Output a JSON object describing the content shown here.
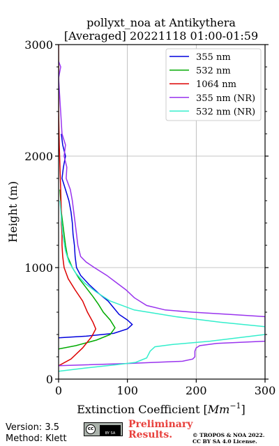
{
  "title_line1": "pollyxt_noa at Antikythera",
  "title_line2": "[Averaged] 20221118 01:00-01:59",
  "footer": {
    "version": "Version: 3.5",
    "method": "Method: Klett",
    "cc_badge_text": "BY SA",
    "prelim_line1": "Preliminary",
    "prelim_line2": "Results.",
    "copyright_line1": "© TROPOS & NOA 2022.",
    "copyright_line2": "CC BY SA 4.0 License.",
    "prelim_color": "#e8403c"
  },
  "chart_data": {
    "type": "line",
    "title": "pollyxt_noa at Antikythera [Averaged] 20221118 01:00-01:59",
    "xlabel": "Extinction Coefficient [Mm−1]",
    "xlabel_base": "Extinction Coefficient [",
    "xlabel_unit": "Mm",
    "xlabel_exp": "−1",
    "xlabel_end": "]",
    "ylabel": "Height (m)",
    "xlim": [
      0,
      300
    ],
    "ylim": [
      0,
      3000
    ],
    "xticks": [
      0,
      100,
      200,
      300
    ],
    "yticks": [
      0,
      1000,
      2000,
      3000
    ],
    "grid": true,
    "legend_position": "top-right",
    "series": [
      {
        "name": "355 nm",
        "color": "#0000dd",
        "points": [
          [
            0,
            370
          ],
          [
            40,
            385
          ],
          [
            80,
            410
          ],
          [
            100,
            450
          ],
          [
            107,
            490
          ],
          [
            100,
            530
          ],
          [
            88,
            580
          ],
          [
            80,
            640
          ],
          [
            72,
            700
          ],
          [
            58,
            770
          ],
          [
            44,
            850
          ],
          [
            32,
            930
          ],
          [
            26,
            1000
          ],
          [
            24,
            1100
          ],
          [
            23,
            1200
          ],
          [
            21,
            1300
          ],
          [
            20,
            1400
          ],
          [
            18,
            1500
          ],
          [
            15,
            1600
          ],
          [
            10,
            1700
          ],
          [
            5,
            1800
          ],
          [
            7,
            1900
          ],
          [
            10,
            2000
          ],
          [
            6,
            2100
          ],
          [
            4,
            2200
          ]
        ]
      },
      {
        "name": "532 nm",
        "color": "#00aa00",
        "points": [
          [
            0,
            270
          ],
          [
            25,
            300
          ],
          [
            55,
            350
          ],
          [
            75,
            400
          ],
          [
            82,
            460
          ],
          [
            75,
            530
          ],
          [
            65,
            600
          ],
          [
            58,
            670
          ],
          [
            50,
            740
          ],
          [
            40,
            820
          ],
          [
            30,
            900
          ],
          [
            20,
            1000
          ],
          [
            13,
            1100
          ],
          [
            10,
            1200
          ],
          [
            8,
            1300
          ],
          [
            6,
            1400
          ],
          [
            4,
            1500
          ],
          [
            3,
            1600
          ],
          [
            2,
            1700
          ]
        ]
      },
      {
        "name": "1064 nm",
        "color": "#dd0000",
        "points": [
          [
            0,
            120
          ],
          [
            18,
            180
          ],
          [
            35,
            280
          ],
          [
            48,
            380
          ],
          [
            54,
            450
          ],
          [
            50,
            510
          ],
          [
            42,
            600
          ],
          [
            35,
            700
          ],
          [
            24,
            800
          ],
          [
            14,
            900
          ],
          [
            8,
            1000
          ],
          [
            6,
            1100
          ],
          [
            5,
            1200
          ],
          [
            5,
            1300
          ],
          [
            4,
            1400
          ],
          [
            4,
            1500
          ],
          [
            3,
            1700
          ],
          [
            2,
            1900
          ],
          [
            1,
            2100
          ],
          [
            0,
            2400
          ],
          [
            0,
            3000
          ]
        ]
      },
      {
        "name": "355 nm (NR)",
        "color": "#9933ee",
        "points": [
          [
            0,
            120
          ],
          [
            100,
            140
          ],
          [
            180,
            160
          ],
          [
            195,
            180
          ],
          [
            198,
            200
          ],
          [
            198,
            250
          ],
          [
            200,
            280
          ],
          [
            205,
            300
          ],
          [
            230,
            320
          ],
          [
            300,
            340
          ],
          [
            300,
            560
          ],
          [
            250,
            580
          ],
          [
            195,
            600
          ],
          [
            155,
            620
          ],
          [
            128,
            660
          ],
          [
            110,
            730
          ],
          [
            98,
            800
          ],
          [
            85,
            860
          ],
          [
            70,
            930
          ],
          [
            52,
            1000
          ],
          [
            40,
            1050
          ],
          [
            32,
            1100
          ],
          [
            28,
            1200
          ],
          [
            26,
            1300
          ],
          [
            24,
            1400
          ],
          [
            22,
            1500
          ],
          [
            20,
            1600
          ],
          [
            17,
            1700
          ],
          [
            11,
            1800
          ],
          [
            12,
            1900
          ],
          [
            8,
            2000
          ],
          [
            10,
            2100
          ],
          [
            5,
            2200
          ],
          [
            0,
            2700
          ],
          [
            3,
            2800
          ],
          [
            0,
            2850
          ]
        ]
      },
      {
        "name": "532 nm (NR)",
        "color": "#33eecc",
        "points": [
          [
            0,
            70
          ],
          [
            40,
            100
          ],
          [
            85,
            130
          ],
          [
            112,
            150
          ],
          [
            128,
            190
          ],
          [
            133,
            250
          ],
          [
            140,
            290
          ],
          [
            165,
            310
          ],
          [
            220,
            340
          ],
          [
            300,
            400
          ],
          [
            300,
            470
          ],
          [
            235,
            510
          ],
          [
            170,
            560
          ],
          [
            110,
            620
          ],
          [
            75,
            700
          ],
          [
            55,
            780
          ],
          [
            38,
            860
          ],
          [
            25,
            950
          ],
          [
            15,
            1050
          ],
          [
            10,
            1150
          ],
          [
            6,
            1300
          ],
          [
            4,
            1450
          ],
          [
            2,
            1600
          ]
        ]
      }
    ]
  }
}
